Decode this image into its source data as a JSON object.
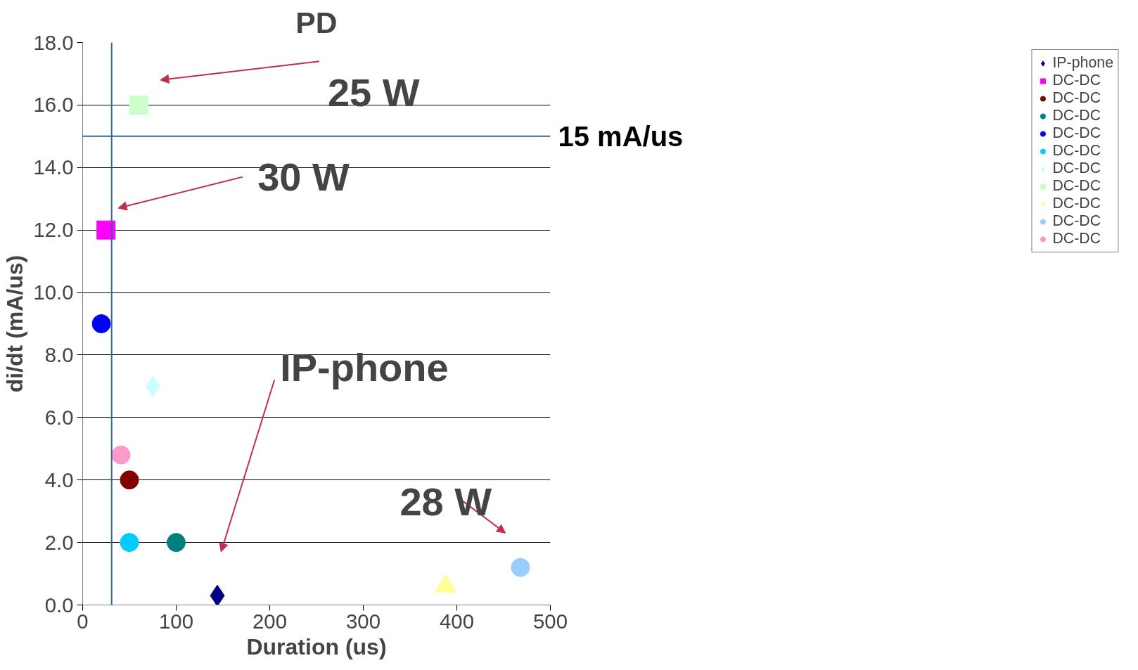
{
  "chart_data": {
    "type": "scatter",
    "title": "PD",
    "xlabel": "Duration (us)",
    "ylabel": "di/dt (mA/us)",
    "xlim": [
      0,
      500
    ],
    "xticks": [
      0,
      100,
      200,
      300,
      400,
      500
    ],
    "ylim": [
      0,
      18
    ],
    "yticks": [
      {
        "value": 0,
        "label": "0.0"
      },
      {
        "value": 2,
        "label": "2.0"
      },
      {
        "value": 4,
        "label": "4.0"
      },
      {
        "value": 6,
        "label": "6.0"
      },
      {
        "value": 8,
        "label": "8.0"
      },
      {
        "value": 10,
        "label": "10.0"
      },
      {
        "value": 12,
        "label": "12.0"
      },
      {
        "value": 14,
        "label": "14.0"
      },
      {
        "value": 16,
        "label": "16.0"
      },
      {
        "value": 18,
        "label": "18.0"
      }
    ],
    "grid": "y",
    "legend": "right",
    "series": [
      {
        "name": "IP-phone",
        "color": "#000080",
        "marker": "diamond",
        "x": [
          144
        ],
        "values": [
          0.3
        ]
      },
      {
        "name": "DC-DC",
        "color": "#ff00ff",
        "marker": "square",
        "x": [
          25
        ],
        "values": [
          12
        ]
      },
      {
        "name": "DC-DC",
        "color": "#800000",
        "marker": "circle",
        "x": [
          50
        ],
        "values": [
          4
        ]
      },
      {
        "name": "DC-DC",
        "color": "#008080",
        "marker": "circle",
        "x": [
          100
        ],
        "values": [
          2
        ]
      },
      {
        "name": "DC-DC",
        "color": "#0000ff",
        "marker": "circle",
        "x": [
          20
        ],
        "values": [
          9
        ]
      },
      {
        "name": "DC-DC",
        "color": "#00ccff",
        "marker": "circle",
        "x": [
          50
        ],
        "values": [
          2
        ]
      },
      {
        "name": "DC-DC",
        "color": "#ccffff",
        "marker": "diamond",
        "x": [
          75
        ],
        "values": [
          7
        ]
      },
      {
        "name": "DC-DC",
        "color": "#ccffcc",
        "marker": "square",
        "x": [
          60
        ],
        "values": [
          16
        ]
      },
      {
        "name": "DC-DC",
        "color": "#ffff99",
        "marker": "triangle",
        "x": [
          388
        ],
        "values": [
          0.6
        ]
      },
      {
        "name": "DC-DC",
        "color": "#99ccff",
        "marker": "circle",
        "x": [
          468
        ],
        "values": [
          1.2
        ]
      },
      {
        "name": "DC-DC",
        "color": "#ff99cc",
        "marker": "circle",
        "x": [
          41
        ],
        "values": [
          4.8
        ]
      }
    ],
    "ref_lines": [
      {
        "axis": "y",
        "value": 15,
        "label": "15 mA/us",
        "color": "#336699"
      },
      {
        "axis": "x",
        "value": 31,
        "color": "#336699"
      }
    ],
    "annotations": [
      "25 W",
      "30 W",
      "IP-phone",
      "28 W"
    ]
  }
}
